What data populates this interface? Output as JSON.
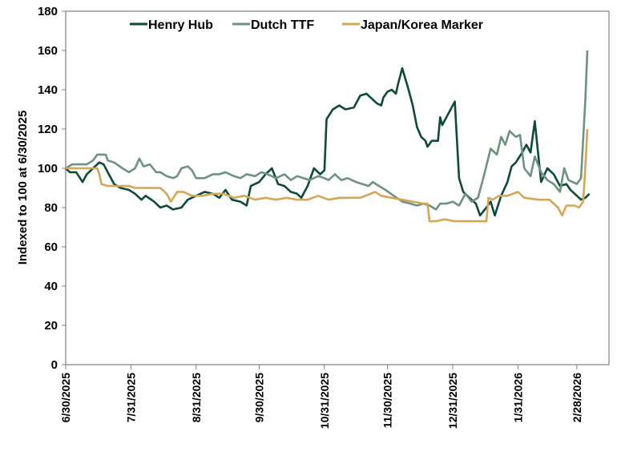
{
  "chart_data": {
    "type": "line",
    "title": "",
    "ylabel": "Indexed to 100 at 6/30/2025",
    "xlabel": "",
    "ylim": [
      0,
      180
    ],
    "yticks": [
      0,
      20,
      40,
      60,
      80,
      100,
      120,
      140,
      160,
      180
    ],
    "x_unit": "days since 6/30/2025",
    "xticks": [
      {
        "day": 0,
        "label": "6/30/2025"
      },
      {
        "day": 31,
        "label": "7/31/2025"
      },
      {
        "day": 62,
        "label": "8/31/2025"
      },
      {
        "day": 92,
        "label": "9/30/2025"
      },
      {
        "day": 123,
        "label": "10/31/2025"
      },
      {
        "day": 153,
        "label": "11/30/2025"
      },
      {
        "day": 184,
        "label": "12/31/2025"
      },
      {
        "day": 215,
        "label": "1/31/2026"
      },
      {
        "day": 243,
        "label": "2/28/2026"
      }
    ],
    "legend_position": "top",
    "grid": false,
    "series": [
      {
        "name": "Henry Hub",
        "color": "#0d4a37",
        "points": [
          [
            0,
            100
          ],
          [
            2,
            98
          ],
          [
            5,
            98
          ],
          [
            8,
            93
          ],
          [
            10,
            97
          ],
          [
            13,
            100
          ],
          [
            16,
            103
          ],
          [
            18,
            102
          ],
          [
            20,
            98
          ],
          [
            23,
            92
          ],
          [
            26,
            90
          ],
          [
            30,
            89
          ],
          [
            33,
            87
          ],
          [
            36,
            84
          ],
          [
            38,
            86
          ],
          [
            42,
            83
          ],
          [
            45,
            80
          ],
          [
            48,
            81
          ],
          [
            51,
            79
          ],
          [
            55,
            80
          ],
          [
            58,
            84
          ],
          [
            62,
            86
          ],
          [
            66,
            88
          ],
          [
            70,
            87
          ],
          [
            73,
            85
          ],
          [
            76,
            89
          ],
          [
            79,
            84
          ],
          [
            83,
            83
          ],
          [
            86,
            81
          ],
          [
            88,
            91
          ],
          [
            92,
            93
          ],
          [
            95,
            97
          ],
          [
            98,
            100
          ],
          [
            101,
            92
          ],
          [
            104,
            91
          ],
          [
            107,
            88
          ],
          [
            110,
            87
          ],
          [
            112,
            85
          ],
          [
            115,
            91
          ],
          [
            118,
            100
          ],
          [
            121,
            97
          ],
          [
            123,
            99
          ],
          [
            124,
            125
          ],
          [
            127,
            130
          ],
          [
            130,
            132
          ],
          [
            133,
            130
          ],
          [
            137,
            131
          ],
          [
            140,
            137
          ],
          [
            143,
            138
          ],
          [
            146,
            135
          ],
          [
            148,
            133
          ],
          [
            150,
            132
          ],
          [
            151,
            136
          ],
          [
            153,
            139
          ],
          [
            155,
            140
          ],
          [
            157,
            138
          ],
          [
            158,
            143
          ],
          [
            160,
            151
          ],
          [
            163,
            140
          ],
          [
            165,
            132
          ],
          [
            167,
            121
          ],
          [
            169,
            116
          ],
          [
            171,
            114
          ],
          [
            172,
            111
          ],
          [
            174,
            114
          ],
          [
            177,
            114
          ],
          [
            178,
            126
          ],
          [
            179,
            122
          ],
          [
            182,
            128
          ],
          [
            185,
            134
          ],
          [
            187,
            95
          ],
          [
            189,
            88
          ],
          [
            192,
            85
          ],
          [
            195,
            82
          ],
          [
            197,
            76
          ],
          [
            200,
            80
          ],
          [
            202,
            83
          ],
          [
            204,
            76
          ],
          [
            207,
            86
          ],
          [
            210,
            93
          ],
          [
            212,
            101
          ],
          [
            214,
            103
          ],
          [
            217,
            108
          ],
          [
            219,
            112
          ],
          [
            221,
            108
          ],
          [
            223,
            124
          ],
          [
            226,
            93
          ],
          [
            229,
            100
          ],
          [
            232,
            97
          ],
          [
            235,
            91
          ],
          [
            238,
            92
          ],
          [
            240,
            89
          ],
          [
            243,
            86
          ],
          [
            245,
            84
          ],
          [
            247,
            85
          ],
          [
            249,
            87
          ]
        ]
      },
      {
        "name": "Dutch TTF",
        "color": "#6e9280",
        "points": [
          [
            0,
            100
          ],
          [
            3,
            102
          ],
          [
            10,
            102
          ],
          [
            13,
            104
          ],
          [
            15,
            107
          ],
          [
            19,
            107
          ],
          [
            20,
            104
          ],
          [
            23,
            103
          ],
          [
            27,
            100
          ],
          [
            30,
            98
          ],
          [
            33,
            100
          ],
          [
            35,
            105
          ],
          [
            37,
            101
          ],
          [
            40,
            102
          ],
          [
            43,
            98
          ],
          [
            45,
            98
          ],
          [
            48,
            96
          ],
          [
            51,
            95
          ],
          [
            53,
            96
          ],
          [
            55,
            100
          ],
          [
            58,
            101
          ],
          [
            60,
            99
          ],
          [
            62,
            95
          ],
          [
            66,
            95
          ],
          [
            70,
            97
          ],
          [
            73,
            97
          ],
          [
            76,
            98
          ],
          [
            80,
            96
          ],
          [
            83,
            95
          ],
          [
            86,
            97
          ],
          [
            90,
            96
          ],
          [
            93,
            98
          ],
          [
            96,
            97
          ],
          [
            100,
            95
          ],
          [
            104,
            97
          ],
          [
            107,
            94
          ],
          [
            110,
            96
          ],
          [
            113,
            95
          ],
          [
            116,
            94
          ],
          [
            120,
            96
          ],
          [
            123,
            95
          ],
          [
            125,
            94
          ],
          [
            128,
            97
          ],
          [
            131,
            94
          ],
          [
            134,
            95
          ],
          [
            138,
            93
          ],
          [
            141,
            92
          ],
          [
            144,
            91
          ],
          [
            146,
            93
          ],
          [
            149,
            91
          ],
          [
            152,
            89
          ],
          [
            156,
            86
          ],
          [
            160,
            83
          ],
          [
            164,
            82
          ],
          [
            167,
            81
          ],
          [
            170,
            82
          ],
          [
            173,
            81
          ],
          [
            176,
            79
          ],
          [
            178,
            82
          ],
          [
            181,
            82
          ],
          [
            184,
            83
          ],
          [
            187,
            81
          ],
          [
            190,
            87
          ],
          [
            193,
            83
          ],
          [
            196,
            85
          ],
          [
            199,
            97
          ],
          [
            202,
            110
          ],
          [
            205,
            107
          ],
          [
            207,
            116
          ],
          [
            209,
            112
          ],
          [
            211,
            119
          ],
          [
            214,
            116
          ],
          [
            216,
            117
          ],
          [
            218,
            100
          ],
          [
            221,
            96
          ],
          [
            223,
            106
          ],
          [
            226,
            98
          ],
          [
            229,
            94
          ],
          [
            232,
            92
          ],
          [
            235,
            88
          ],
          [
            237,
            100
          ],
          [
            239,
            94
          ],
          [
            241,
            93
          ],
          [
            243,
            92
          ],
          [
            245,
            95
          ],
          [
            247,
            134
          ],
          [
            248,
            160
          ]
        ]
      },
      {
        "name": "Japan/Korea Marker",
        "color": "#d4a656",
        "points": [
          [
            0,
            100
          ],
          [
            5,
            100
          ],
          [
            15,
            100
          ],
          [
            16,
            97
          ],
          [
            17,
            92
          ],
          [
            20,
            91
          ],
          [
            25,
            91
          ],
          [
            30,
            91
          ],
          [
            33,
            90
          ],
          [
            40,
            90
          ],
          [
            45,
            90
          ],
          [
            48,
            87
          ],
          [
            50,
            83
          ],
          [
            53,
            88
          ],
          [
            56,
            88
          ],
          [
            60,
            86
          ],
          [
            65,
            86
          ],
          [
            70,
            87
          ],
          [
            75,
            87
          ],
          [
            80,
            85
          ],
          [
            85,
            86
          ],
          [
            90,
            84
          ],
          [
            95,
            85
          ],
          [
            100,
            84
          ],
          [
            105,
            85
          ],
          [
            110,
            84
          ],
          [
            115,
            84
          ],
          [
            120,
            86
          ],
          [
            125,
            84
          ],
          [
            130,
            85
          ],
          [
            140,
            85
          ],
          [
            145,
            87
          ],
          [
            147,
            88
          ],
          [
            150,
            86
          ],
          [
            155,
            85
          ],
          [
            160,
            84
          ],
          [
            165,
            83
          ],
          [
            170,
            82
          ],
          [
            172,
            82
          ],
          [
            173,
            73
          ],
          [
            176,
            73
          ],
          [
            180,
            74
          ],
          [
            185,
            73
          ],
          [
            190,
            73
          ],
          [
            196,
            73
          ],
          [
            200,
            73
          ],
          [
            201,
            85
          ],
          [
            203,
            84
          ],
          [
            206,
            86
          ],
          [
            210,
            86
          ],
          [
            215,
            88
          ],
          [
            218,
            85
          ],
          [
            225,
            84
          ],
          [
            230,
            84
          ],
          [
            234,
            80
          ],
          [
            236,
            76
          ],
          [
            238,
            81
          ],
          [
            242,
            81
          ],
          [
            244,
            80
          ],
          [
            246,
            83
          ],
          [
            247,
            100
          ],
          [
            248,
            120
          ]
        ]
      }
    ]
  }
}
